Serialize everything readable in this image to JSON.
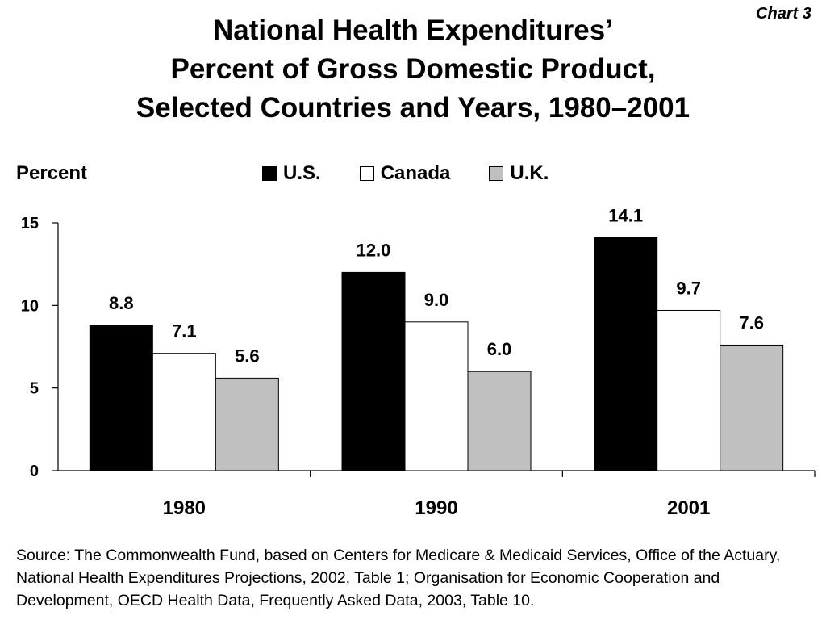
{
  "chart_label": "Chart 3",
  "title_lines": [
    "National Health Expenditures’",
    "Percent of Gross Domestic Product,",
    "Selected Countries and Years, 1980–2001"
  ],
  "source": "Source: The Commonwealth Fund, based on Centers for Medicare & Medicaid Services, Office of the Actuary, National Health Expenditures Projections, 2002, Table 1; Organisation for Economic Cooperation and Development, OECD Health Data, Frequently Asked Data, 2003, Table 10.",
  "chart_data": {
    "type": "bar",
    "title": "National Health Expenditures’ Percent of Gross Domestic Product, Selected Countries and Years, 1980–2001",
    "xlabel": "",
    "ylabel": "Percent",
    "categories": [
      "1980",
      "1990",
      "2001"
    ],
    "series": [
      {
        "name": "U.S.",
        "color": "#000000",
        "values": [
          8.8,
          12.0,
          14.1
        ],
        "labels": [
          "8.8",
          "12.0",
          "14.1"
        ]
      },
      {
        "name": "Canada",
        "color": "#ffffff",
        "values": [
          7.1,
          9.0,
          9.7
        ],
        "labels": [
          "7.1",
          "9.0",
          "9.7"
        ]
      },
      {
        "name": "U.K.",
        "color": "#c0c0c0",
        "values": [
          5.6,
          6.0,
          7.6
        ],
        "labels": [
          "5.6",
          "6.0",
          "7.6"
        ]
      }
    ],
    "ylim": [
      0,
      15
    ],
    "yticks": [
      0,
      5,
      10,
      15
    ],
    "ytick_labels": [
      "0",
      "5",
      "10",
      "15"
    ],
    "grid": false,
    "legend_position": "top-center"
  }
}
